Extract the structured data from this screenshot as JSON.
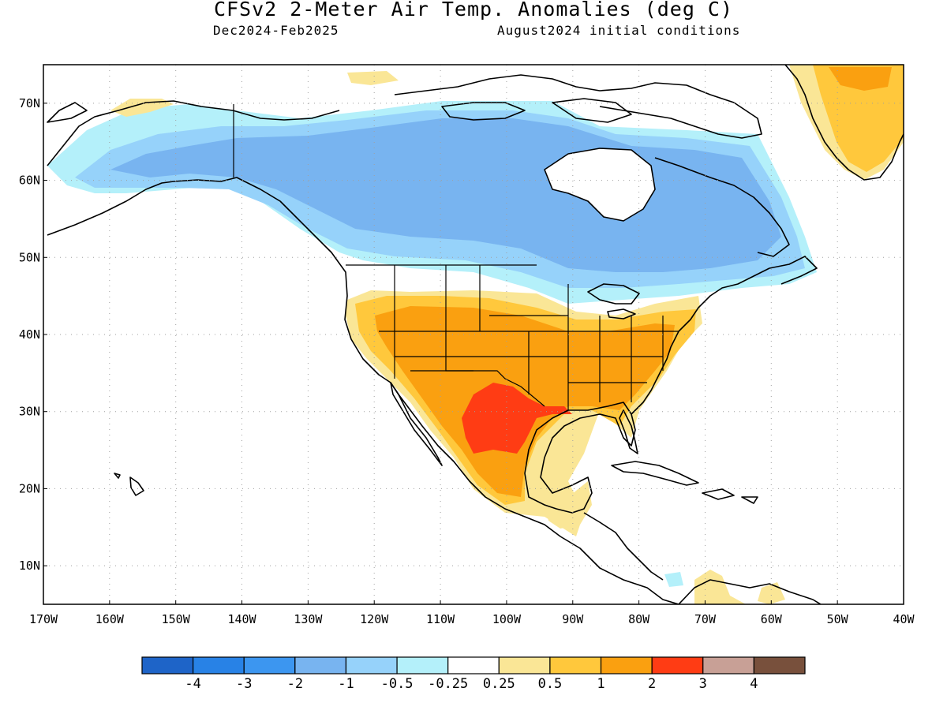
{
  "title": "CFSv2 2-Meter Air Temp. Anomalies (deg C)",
  "subtitle_left": "Dec2024-Feb2025",
  "subtitle_right": "August2024 initial conditions",
  "map": {
    "projection": "equirectangular",
    "lon_range": [
      -170,
      -40
    ],
    "lat_range": [
      5,
      75
    ],
    "lon_ticks": [
      "170W",
      "160W",
      "150W",
      "140W",
      "130W",
      "120W",
      "110W",
      "100W",
      "90W",
      "80W",
      "70W",
      "60W",
      "50W",
      "40W"
    ],
    "lat_ticks": [
      "10N",
      "20N",
      "30N",
      "40N",
      "50N",
      "60N",
      "70N"
    ],
    "grid": "dotted gray"
  },
  "colorbar": {
    "labels": [
      "-4",
      "-3",
      "-2",
      "-1",
      "-0.5",
      "-0.25",
      "0.25",
      "0.5",
      "1",
      "2",
      "3",
      "4"
    ],
    "colors": [
      "#1e64c8",
      "#2882e6",
      "#3c96f0",
      "#78b4f0",
      "#96d2fa",
      "#b4f0fa",
      "#ffffff",
      "#fae696",
      "#ffc83c",
      "#faa010",
      "#ff3c14",
      "#c8a096",
      "#78503c"
    ]
  },
  "anomaly_regions": [
    {
      "name": "alaska-yukon-cold",
      "category": "-1 to -0.5",
      "color": "#96d2fa"
    },
    {
      "name": "canada-cold",
      "category": "-2 to -1",
      "color": "#78b4f0"
    },
    {
      "name": "us-southwest-warm",
      "category": "1 to 2",
      "color": "#faa010"
    },
    {
      "name": "texas-mexico-warm",
      "category": "2 to 3",
      "color": "#ff3c14"
    },
    {
      "name": "greenland-warm",
      "category": "0.5 to 1",
      "color": "#ffc83c"
    },
    {
      "name": "central-america-warm",
      "category": "0.25 to 0.5",
      "color": "#fae696"
    }
  ]
}
